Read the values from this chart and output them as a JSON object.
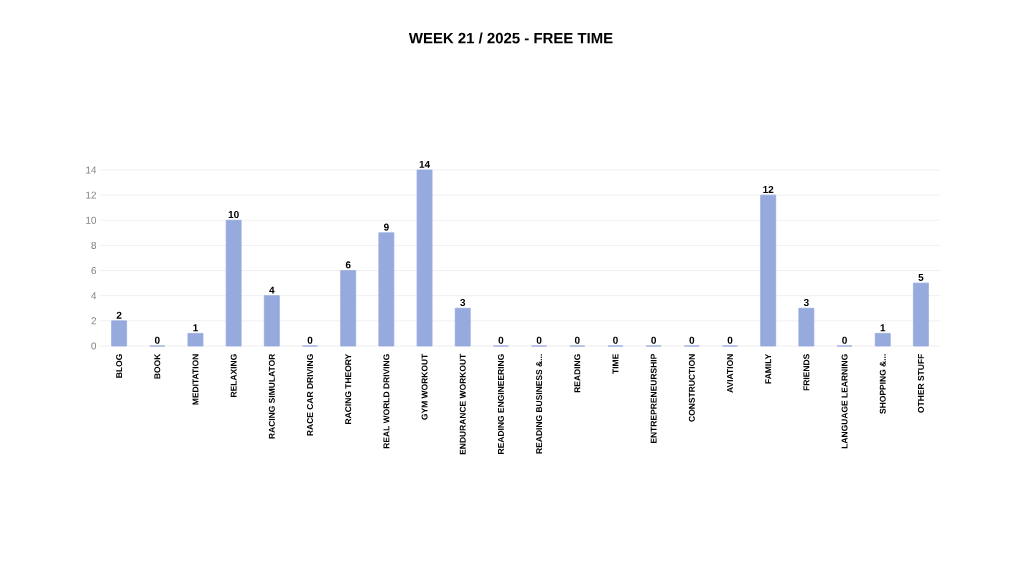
{
  "chart_data": {
    "type": "bar",
    "title": "WEEK 21 / 2025 - FREE TIME",
    "categories": [
      "BLOG",
      "BOOK",
      "MEDITATION",
      "RELAXING",
      "RACING SIMULATOR",
      "RACE CAR DRIVING",
      "RACING THEORY",
      "REAL WORLD DRIVING",
      "GYM WORKOUT",
      "ENDURANCE WORKOUT",
      "READING ENGINEERING",
      "READING BUSINESS &...",
      "READING",
      "TIME",
      "ENTREPRENEURSHIP",
      "CONSTRUCTION",
      "AVIATION",
      "FAMILY",
      "FRIENDS",
      "LANGUAGE LEARNING",
      "SHOPPING &...",
      "OTHER STUFF"
    ],
    "values": [
      2,
      0,
      1,
      10,
      4,
      0,
      6,
      9,
      14,
      3,
      0,
      0,
      0,
      0,
      0,
      0,
      0,
      12,
      3,
      0,
      1,
      5
    ],
    "color": "#97aade",
    "ylim": [
      0,
      14
    ],
    "yticks": [
      0,
      2,
      4,
      6,
      8,
      10,
      12,
      14
    ],
    "grid": "y",
    "data_labels": true
  }
}
